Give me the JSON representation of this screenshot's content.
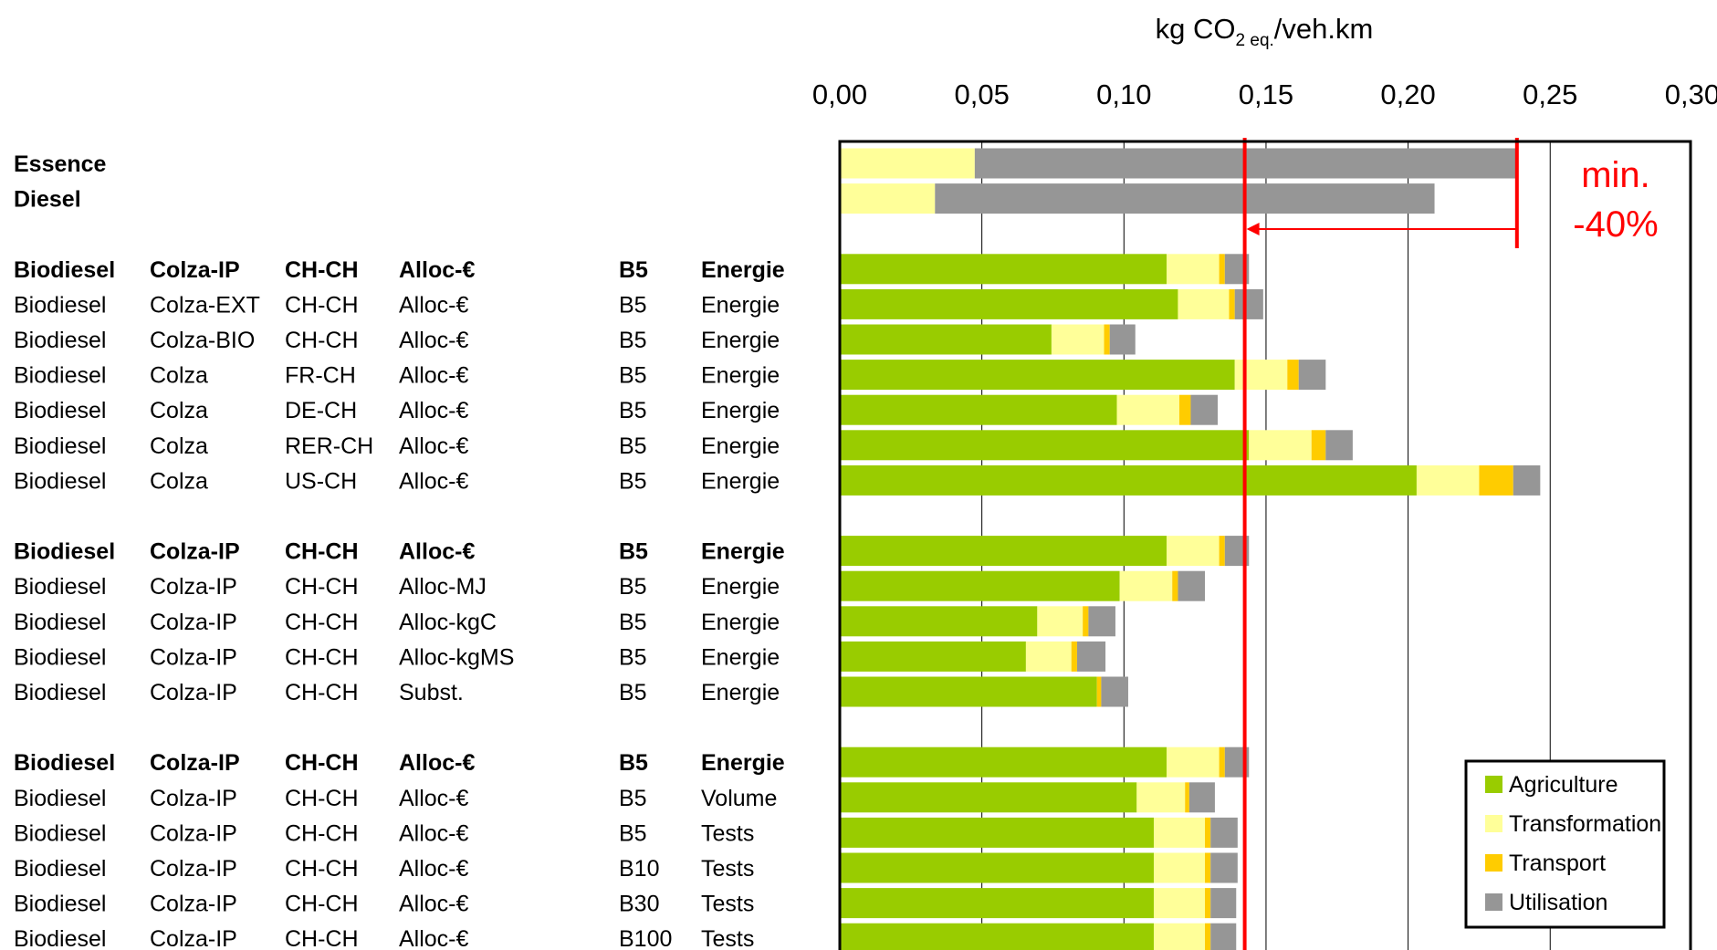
{
  "chart_data": {
    "type": "bar",
    "orientation": "horizontal",
    "stacked": true,
    "unit_label": {
      "pre": "kg CO",
      "sub1": "2 eq.",
      "post": "/veh.km"
    },
    "x_axis": {
      "min": 0,
      "max": 0.3,
      "position": "top",
      "ticks": [
        0.0,
        0.05,
        0.1,
        0.15,
        0.2,
        0.25,
        0.3
      ],
      "tick_labels": [
        "0,00",
        "0,05",
        "0,10",
        "0,15",
        "0,20",
        "0,25",
        "0,30"
      ],
      "grid": true
    },
    "legend": {
      "placement": "bottom-right",
      "entries": [
        {
          "key": "agriculture",
          "label": "Agriculture",
          "color": "#99cc00"
        },
        {
          "key": "transformation",
          "label": "Transformation",
          "color": "#ffff99"
        },
        {
          "key": "transport",
          "label": "Transport",
          "color": "#ffcc00"
        },
        {
          "key": "utilisation",
          "label": "Utilisation",
          "color": "#969696"
        }
      ]
    },
    "reference_line": {
      "value": 0.1425,
      "color": "#ff0000"
    },
    "annotation": {
      "lines": [
        "min.",
        "-40%"
      ],
      "arrow_from": 0.2383,
      "arrow_to": 0.1425,
      "color": "#ff0000"
    },
    "rows": [
      {
        "label": [
          "Essence"
        ],
        "bold": true,
        "values": [
          0,
          0.0475,
          0,
          0.1908
        ]
      },
      {
        "label": [
          "Diesel"
        ],
        "bold": true,
        "values": [
          0,
          0.0335,
          0,
          0.1758
        ]
      },
      {
        "label": null
      },
      {
        "label": [
          "Biodiesel",
          "Colza-IP",
          "CH-CH",
          "Alloc-€",
          "B5",
          "Energie"
        ],
        "bold": true,
        "values": [
          0.115,
          0.0185,
          0.002,
          0.0085
        ]
      },
      {
        "label": [
          "Biodiesel",
          "Colza-EXT",
          "CH-CH",
          "Alloc-€",
          "B5",
          "Energie"
        ],
        "bold": false,
        "values": [
          0.119,
          0.018,
          0.002,
          0.01
        ]
      },
      {
        "label": [
          "Biodiesel",
          "Colza-BIO",
          "CH-CH",
          "Alloc-€",
          "B5",
          "Energie"
        ],
        "bold": false,
        "values": [
          0.0745,
          0.0185,
          0.002,
          0.009
        ]
      },
      {
        "label": [
          "Biodiesel",
          "Colza",
          "FR-CH",
          "Alloc-€",
          "B5",
          "Energie"
        ],
        "bold": false,
        "values": [
          0.139,
          0.0185,
          0.004,
          0.0095
        ]
      },
      {
        "label": [
          "Biodiesel",
          "Colza",
          "DE-CH",
          "Alloc-€",
          "B5",
          "Energie"
        ],
        "bold": false,
        "values": [
          0.0975,
          0.022,
          0.004,
          0.0095
        ]
      },
      {
        "label": [
          "Biodiesel",
          "Colza",
          "RER-CH",
          "Alloc-€",
          "B5",
          "Energie"
        ],
        "bold": false,
        "values": [
          0.144,
          0.022,
          0.005,
          0.0095
        ]
      },
      {
        "label": [
          "Biodiesel",
          "Colza",
          "US-CH",
          "Alloc-€",
          "B5",
          "Energie"
        ],
        "bold": false,
        "values": [
          0.203,
          0.022,
          0.012,
          0.0095
        ]
      },
      {
        "label": null
      },
      {
        "label": [
          "Biodiesel",
          "Colza-IP",
          "CH-CH",
          "Alloc-€",
          "B5",
          "Energie"
        ],
        "bold": true,
        "values": [
          0.115,
          0.0185,
          0.002,
          0.0085
        ]
      },
      {
        "label": [
          "Biodiesel",
          "Colza-IP",
          "CH-CH",
          "Alloc-MJ",
          "B5",
          "Energie"
        ],
        "bold": false,
        "values": [
          0.0985,
          0.0185,
          0.002,
          0.0095
        ]
      },
      {
        "label": [
          "Biodiesel",
          "Colza-IP",
          "CH-CH",
          "Alloc-kgC",
          "B5",
          "Energie"
        ],
        "bold": false,
        "values": [
          0.0695,
          0.016,
          0.002,
          0.0095
        ]
      },
      {
        "label": [
          "Biodiesel",
          "Colza-IP",
          "CH-CH",
          "Alloc-kgMS",
          "B5",
          "Energie"
        ],
        "bold": false,
        "values": [
          0.0655,
          0.016,
          0.002,
          0.01
        ]
      },
      {
        "label": [
          "Biodiesel",
          "Colza-IP",
          "CH-CH",
          "Subst.",
          "B5",
          "Energie"
        ],
        "bold": false,
        "values": [
          0.0905,
          0,
          0.0015,
          0.0095
        ]
      },
      {
        "label": null
      },
      {
        "label": [
          "Biodiesel",
          "Colza-IP",
          "CH-CH",
          "Alloc-€",
          "B5",
          "Energie"
        ],
        "bold": true,
        "values": [
          0.115,
          0.0185,
          0.002,
          0.0085
        ]
      },
      {
        "label": [
          "Biodiesel",
          "Colza-IP",
          "CH-CH",
          "Alloc-€",
          "B5",
          "Volume"
        ],
        "bold": false,
        "values": [
          0.1045,
          0.017,
          0.0015,
          0.009
        ]
      },
      {
        "label": [
          "Biodiesel",
          "Colza-IP",
          "CH-CH",
          "Alloc-€",
          "B5",
          "Tests"
        ],
        "bold": false,
        "values": [
          0.1105,
          0.018,
          0.002,
          0.0095
        ]
      },
      {
        "label": [
          "Biodiesel",
          "Colza-IP",
          "CH-CH",
          "Alloc-€",
          "B10",
          "Tests"
        ],
        "bold": false,
        "values": [
          0.1105,
          0.018,
          0.002,
          0.0095
        ]
      },
      {
        "label": [
          "Biodiesel",
          "Colza-IP",
          "CH-CH",
          "Alloc-€",
          "B30",
          "Tests"
        ],
        "bold": false,
        "values": [
          0.1105,
          0.018,
          0.002,
          0.009
        ]
      },
      {
        "label": [
          "Biodiesel",
          "Colza-IP",
          "CH-CH",
          "Alloc-€",
          "B100",
          "Tests"
        ],
        "bold": false,
        "values": [
          0.1105,
          0.018,
          0.002,
          0.009
        ]
      }
    ]
  }
}
